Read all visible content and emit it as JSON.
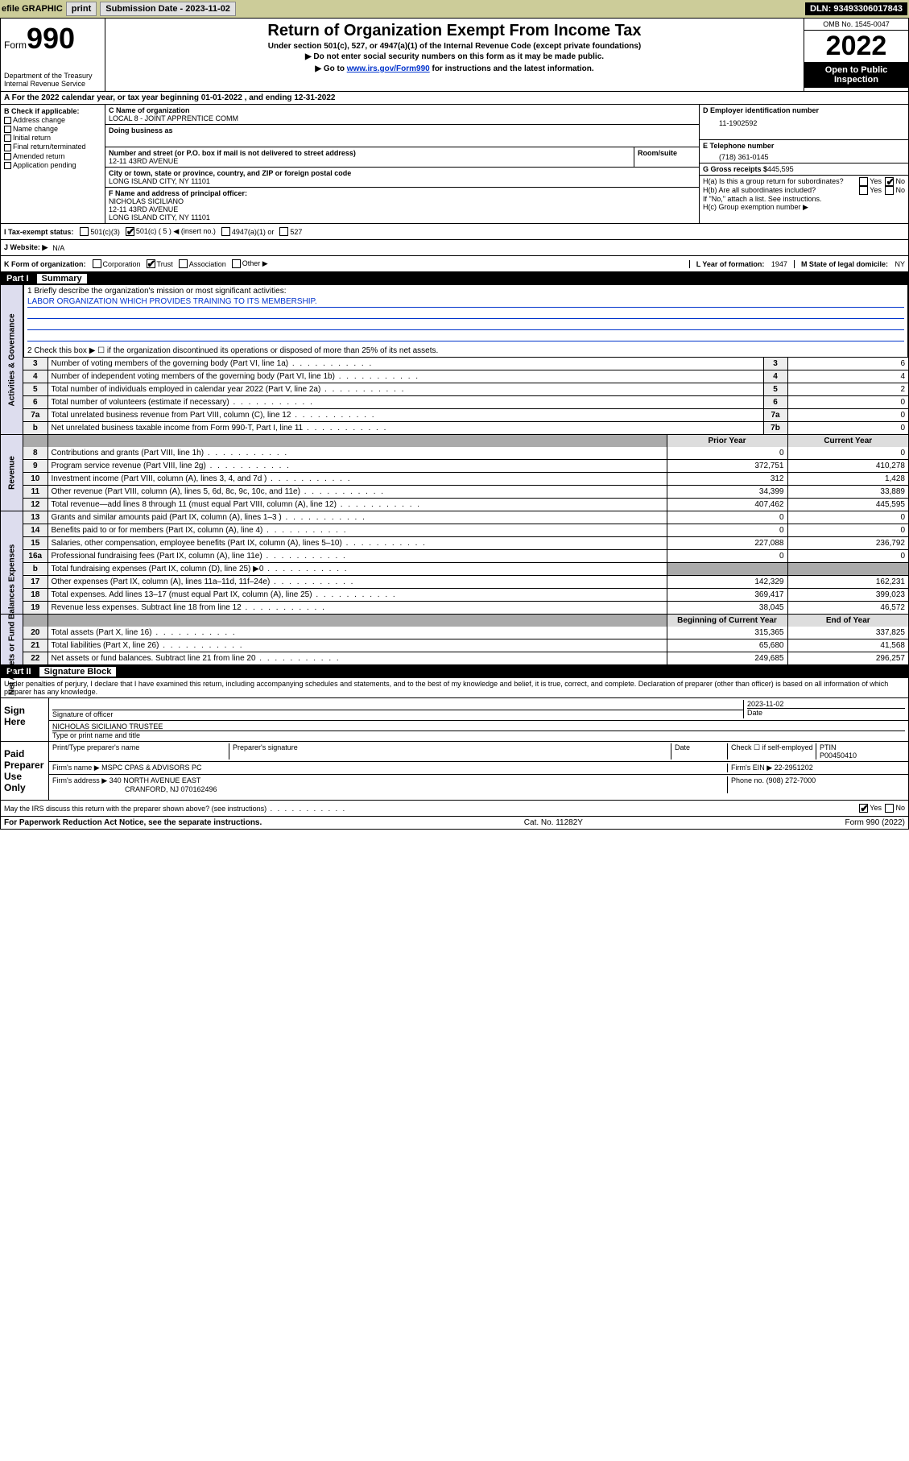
{
  "toolbar": {
    "efile": "efile GRAPHIC",
    "print": "print",
    "sub_label": "Submission Date - 2023-11-02",
    "dln": "DLN: 93493306017843"
  },
  "header": {
    "form_label": "Form",
    "form_num": "990",
    "dept": "Department of the Treasury",
    "irs": "Internal Revenue Service",
    "title": "Return of Organization Exempt From Income Tax",
    "sub1": "Under section 501(c), 527, or 4947(a)(1) of the Internal Revenue Code (except private foundations)",
    "sub2": "▶ Do not enter social security numbers on this form as it may be made public.",
    "sub3_pre": "▶ Go to ",
    "sub3_link": "www.irs.gov/Form990",
    "sub3_post": " for instructions and the latest information.",
    "omb": "OMB No. 1545-0047",
    "year": "2022",
    "open": "Open to Public Inspection"
  },
  "rowA": "A For the 2022 calendar year, or tax year beginning 01-01-2022    , and ending 12-31-2022",
  "colB": {
    "hdr": "B Check if applicable:",
    "items": [
      "Address change",
      "Name change",
      "Initial return",
      "Final return/terminated",
      "Amended return",
      "Application pending"
    ]
  },
  "colC": {
    "name_lbl": "C Name of organization",
    "name": "LOCAL 8 - JOINT APPRENTICE COMM",
    "dba_lbl": "Doing business as",
    "dba": "",
    "addr_lbl": "Number and street (or P.O. box if mail is not delivered to street address)",
    "room_lbl": "Room/suite",
    "addr": "12-11 43RD AVENUE",
    "city_lbl": "City or town, state or province, country, and ZIP or foreign postal code",
    "city": "LONG ISLAND CITY, NY  11101",
    "f_lbl": "F Name and address of principal officer:",
    "f_name": "NICHOLAS SICILIANO",
    "f_addr1": "12-11 43RD AVENUE",
    "f_addr2": "LONG ISLAND CITY, NY  11101"
  },
  "colD": {
    "ein_lbl": "D Employer identification number",
    "ein": "11-1902592",
    "tel_lbl": "E Telephone number",
    "tel": "(718) 361-0145",
    "gross_lbl": "G Gross receipts $",
    "gross": "445,595",
    "ha": "H(a)  Is this a group return for subordinates?",
    "hb": "H(b)  Are all subordinates included?",
    "h_note": "If \"No,\" attach a list. See instructions.",
    "hc": "H(c)  Group exemption number ▶"
  },
  "rowI": {
    "lbl": "I  Tax-exempt status:",
    "opts": [
      "501(c)(3)",
      "501(c) ( 5 ) ◀ (insert no.)",
      "4947(a)(1) or",
      "527"
    ]
  },
  "rowJ": {
    "lbl": "J  Website: ▶",
    "val": "N/A"
  },
  "rowK": {
    "lbl": "K Form of organization:",
    "opts": [
      "Corporation",
      "Trust",
      "Association",
      "Other ▶"
    ]
  },
  "rowL": {
    "lbl": "L Year of formation:",
    "val": "1947"
  },
  "rowM": {
    "lbl": "M State of legal domicile:",
    "val": "NY"
  },
  "part1": {
    "hdr": "Part I",
    "title": "Summary",
    "line1_lbl": "1  Briefly describe the organization's mission or most significant activities:",
    "line1_val": "LABOR ORGANIZATION WHICH PROVIDES TRAINING TO ITS MEMBERSHIP.",
    "line2": "2  Check this box ▶ ☐  if the organization discontinued its operations or disposed of more than 25% of its net assets."
  },
  "sections": {
    "gov": {
      "label": "Activities & Governance",
      "rows": [
        {
          "n": "3",
          "d": "Number of voting members of the governing body (Part VI, line 1a)",
          "b": "3",
          "v": "6"
        },
        {
          "n": "4",
          "d": "Number of independent voting members of the governing body (Part VI, line 1b)",
          "b": "4",
          "v": "4"
        },
        {
          "n": "5",
          "d": "Total number of individuals employed in calendar year 2022 (Part V, line 2a)",
          "b": "5",
          "v": "2"
        },
        {
          "n": "6",
          "d": "Total number of volunteers (estimate if necessary)",
          "b": "6",
          "v": "0"
        },
        {
          "n": "7a",
          "d": "Total unrelated business revenue from Part VIII, column (C), line 12",
          "b": "7a",
          "v": "0"
        },
        {
          "n": "b",
          "d": "Net unrelated business taxable income from Form 990-T, Part I, line 11",
          "b": "7b",
          "v": "0"
        }
      ]
    },
    "rev": {
      "label": "Revenue",
      "hdr_prior": "Prior Year",
      "hdr_curr": "Current Year",
      "rows": [
        {
          "n": "8",
          "d": "Contributions and grants (Part VIII, line 1h)",
          "p": "0",
          "c": "0"
        },
        {
          "n": "9",
          "d": "Program service revenue (Part VIII, line 2g)",
          "p": "372,751",
          "c": "410,278"
        },
        {
          "n": "10",
          "d": "Investment income (Part VIII, column (A), lines 3, 4, and 7d )",
          "p": "312",
          "c": "1,428"
        },
        {
          "n": "11",
          "d": "Other revenue (Part VIII, column (A), lines 5, 6d, 8c, 9c, 10c, and 11e)",
          "p": "34,399",
          "c": "33,889"
        },
        {
          "n": "12",
          "d": "Total revenue—add lines 8 through 11 (must equal Part VIII, column (A), line 12)",
          "p": "407,462",
          "c": "445,595"
        }
      ]
    },
    "exp": {
      "label": "Expenses",
      "rows": [
        {
          "n": "13",
          "d": "Grants and similar amounts paid (Part IX, column (A), lines 1–3 )",
          "p": "0",
          "c": "0"
        },
        {
          "n": "14",
          "d": "Benefits paid to or for members (Part IX, column (A), line 4)",
          "p": "0",
          "c": "0"
        },
        {
          "n": "15",
          "d": "Salaries, other compensation, employee benefits (Part IX, column (A), lines 5–10)",
          "p": "227,088",
          "c": "236,792"
        },
        {
          "n": "16a",
          "d": "Professional fundraising fees (Part IX, column (A), line 11e)",
          "p": "0",
          "c": "0"
        },
        {
          "n": "b",
          "d": "Total fundraising expenses (Part IX, column (D), line 25) ▶0",
          "p": "",
          "c": "",
          "sh": true
        },
        {
          "n": "17",
          "d": "Other expenses (Part IX, column (A), lines 11a–11d, 11f–24e)",
          "p": "142,329",
          "c": "162,231"
        },
        {
          "n": "18",
          "d": "Total expenses. Add lines 13–17 (must equal Part IX, column (A), line 25)",
          "p": "369,417",
          "c": "399,023"
        },
        {
          "n": "19",
          "d": "Revenue less expenses. Subtract line 18 from line 12",
          "p": "38,045",
          "c": "46,572"
        }
      ]
    },
    "net": {
      "label": "Net Assets or Fund Balances",
      "hdr_beg": "Beginning of Current Year",
      "hdr_end": "End of Year",
      "rows": [
        {
          "n": "20",
          "d": "Total assets (Part X, line 16)",
          "p": "315,365",
          "c": "337,825"
        },
        {
          "n": "21",
          "d": "Total liabilities (Part X, line 26)",
          "p": "65,680",
          "c": "41,568"
        },
        {
          "n": "22",
          "d": "Net assets or fund balances. Subtract line 21 from line 20",
          "p": "249,685",
          "c": "296,257"
        }
      ]
    }
  },
  "part2": {
    "hdr": "Part II",
    "title": "Signature Block",
    "decl": "Under penalties of perjury, I declare that I have examined this return, including accompanying schedules and statements, and to the best of my knowledge and belief, it is true, correct, and complete. Declaration of preparer (other than officer) is based on all information of which preparer has any knowledge."
  },
  "sign": {
    "here": "Sign Here",
    "sig_lbl": "Signature of officer",
    "date_lbl": "Date",
    "date": "2023-11-02",
    "name": "NICHOLAS SICILIANO  TRUSTEE",
    "name_lbl": "Type or print name and title"
  },
  "paid": {
    "here": "Paid Preparer Use Only",
    "prep_name_lbl": "Print/Type preparer's name",
    "prep_sig_lbl": "Preparer's signature",
    "date_lbl": "Date",
    "check_lbl": "Check ☐ if self-employed",
    "ptin_lbl": "PTIN",
    "ptin": "P00450410",
    "firm_name_lbl": "Firm's name     ▶",
    "firm_name": "MSPC CPAS & ADVISORS PC",
    "firm_ein_lbl": "Firm's EIN ▶",
    "firm_ein": "22-2951202",
    "firm_addr_lbl": "Firm's address ▶",
    "firm_addr1": "340 NORTH AVENUE EAST",
    "firm_addr2": "CRANFORD, NJ  070162496",
    "phone_lbl": "Phone no.",
    "phone": "(908) 272-7000"
  },
  "discuss": "May the IRS discuss this return with the preparer shown above? (see instructions)",
  "footer": {
    "left": "For Paperwork Reduction Act Notice, see the separate instructions.",
    "mid": "Cat. No. 11282Y",
    "right": "Form 990 (2022)"
  },
  "yn": {
    "yes": "Yes",
    "no": "No"
  }
}
